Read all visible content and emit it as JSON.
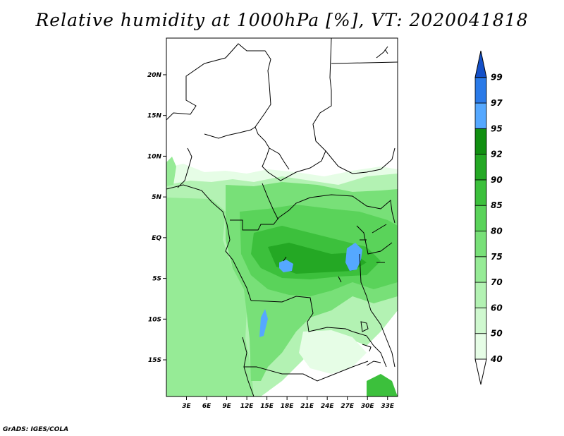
{
  "title": "Relative humidity at 1000hPa [%], VT: 2020041818",
  "credit": "GrADS: IGES/COLA",
  "map": {
    "lon_range": [
      0,
      34.5
    ],
    "lat_range": [
      -19.5,
      24.5
    ],
    "lat_ticks": [
      {
        "value": 20,
        "label": "20N"
      },
      {
        "value": 15,
        "label": "15N"
      },
      {
        "value": 10,
        "label": "10N"
      },
      {
        "value": 5,
        "label": "5N"
      },
      {
        "value": 0,
        "label": "EQ"
      },
      {
        "value": -5,
        "label": "5S"
      },
      {
        "value": -10,
        "label": "10S"
      },
      {
        "value": -15,
        "label": "15S"
      }
    ],
    "lon_ticks": [
      {
        "value": 3,
        "label": "3E"
      },
      {
        "value": 6,
        "label": "6E"
      },
      {
        "value": 9,
        "label": "9E"
      },
      {
        "value": 12,
        "label": "12E"
      },
      {
        "value": 15,
        "label": "15E"
      },
      {
        "value": 18,
        "label": "18E"
      },
      {
        "value": 21,
        "label": "21E"
      },
      {
        "value": 24,
        "label": "24E"
      },
      {
        "value": 27,
        "label": "27E"
      },
      {
        "value": 30,
        "label": "30E"
      },
      {
        "value": 33,
        "label": "33E"
      }
    ]
  },
  "colorbar": {
    "levels": [
      "40",
      "50",
      "60",
      "70",
      "75",
      "80",
      "85",
      "90",
      "92",
      "95",
      "97",
      "99"
    ],
    "colors": [
      "#ffffff",
      "#e6fde6",
      "#cff8cf",
      "#b3f2b3",
      "#96eb96",
      "#78e078",
      "#5ad35a",
      "#3cc03c",
      "#24a824",
      "#118f11",
      "#55a8ff",
      "#2a7ae8",
      "#1450c8"
    ]
  }
}
